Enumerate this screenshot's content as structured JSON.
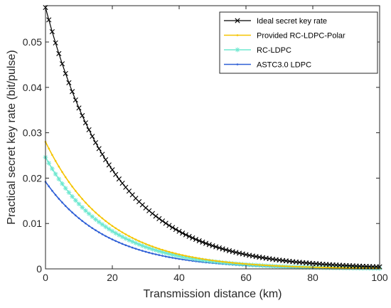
{
  "chart_data": {
    "type": "line",
    "title": "",
    "xlabel": "Transmission distance (km)",
    "ylabel": "Practical secret key rate (bit/pulse)",
    "xlim": [
      0,
      100
    ],
    "ylim": [
      0,
      0.058
    ],
    "x_ticks": [
      "0",
      "20",
      "40",
      "60",
      "80",
      "100"
    ],
    "y_ticks": [
      "0",
      "0.01",
      "0.02",
      "0.03",
      "0.04",
      "0.05"
    ],
    "grid": false,
    "legend_position": "top-right",
    "x": [
      0,
      1,
      2,
      3,
      4,
      5,
      6,
      7,
      8,
      9,
      10,
      11,
      12,
      13,
      14,
      15,
      16,
      17,
      18,
      19,
      20,
      21,
      22,
      23,
      24,
      25,
      26,
      27,
      28,
      29,
      30,
      31,
      32,
      33,
      34,
      35,
      36,
      37,
      38,
      39,
      40,
      41,
      42,
      43,
      44,
      45,
      46,
      47,
      48,
      49,
      50,
      51,
      52,
      53,
      54,
      55,
      56,
      57,
      58,
      59,
      60,
      61,
      62,
      63,
      64,
      65,
      66,
      67,
      68,
      69,
      70,
      71,
      72,
      73,
      74,
      75,
      76,
      77,
      78,
      79,
      80,
      81,
      82,
      83,
      84,
      85,
      86,
      87,
      88,
      89,
      90,
      91,
      92,
      93,
      94,
      95,
      96,
      97,
      98,
      99,
      100
    ],
    "series": [
      {
        "name": "Ideal secret key rate",
        "color": "#000000",
        "marker": "x",
        "values": [
          0.0576,
          0.05487,
          0.05227,
          0.0498,
          0.04744,
          0.04519,
          0.04305,
          0.04102,
          0.03907,
          0.03722,
          0.03546,
          0.03378,
          0.03218,
          0.03066,
          0.02921,
          0.02782,
          0.0265,
          0.02525,
          0.02405,
          0.02291,
          0.02183,
          0.0208,
          0.01981,
          0.01887,
          0.01798,
          0.01713,
          0.01632,
          0.01554,
          0.01481,
          0.01411,
          0.01344,
          0.0128,
          0.0122,
          0.01162,
          0.01107,
          0.01055,
          0.01005,
          0.00957,
          0.00912,
          0.00869,
          0.00828,
          0.00788,
          0.00751,
          0.00716,
          0.00682,
          0.00649,
          0.00619,
          0.0059,
          0.00562,
          0.00535,
          0.0051,
          0.00486,
          0.00463,
          0.00441,
          0.0042,
          0.004,
          0.00381,
          0.00363,
          0.00346,
          0.0033,
          0.00314,
          0.00299,
          0.00285,
          0.00272,
          0.00259,
          0.00247,
          0.00235,
          0.00224,
          0.00213,
          0.00203,
          0.00193,
          0.00184,
          0.00176,
          0.00167,
          0.00159,
          0.00152,
          0.00145,
          0.00138,
          0.00131,
          0.00125,
          0.00119,
          0.00114,
          0.00108,
          0.00103,
          0.00098,
          0.00094,
          0.00089,
          0.00085,
          0.00081,
          0.00077,
          0.00074,
          0.0007,
          0.00067,
          0.00064,
          0.00061,
          0.00058,
          0.00055,
          0.00052,
          0.0005,
          0.00048,
          0.00045
        ]
      },
      {
        "name": "Provided RC-LDPC-Polar",
        "color": "#f5c400",
        "marker": "dot",
        "values": [
          0.028,
          0.02652,
          0.02512,
          0.02379,
          0.02254,
          0.02135,
          0.02022,
          0.01915,
          0.01814,
          0.01718,
          0.01628,
          0.01542,
          0.0146,
          0.01383,
          0.0131,
          0.01241,
          0.01176,
          0.01114,
          0.01055,
          0.00999,
          0.00946,
          0.00896,
          0.00849,
          0.00804,
          0.00762,
          0.00722,
          0.00683,
          0.00647,
          0.00613,
          0.00581,
          0.0055,
          0.00521,
          0.00494,
          0.00468,
          0.00443,
          0.0042,
          0.00397,
          0.00376,
          0.00357,
          0.00338,
          0.0032,
          0.00303,
          0.00287,
          0.00272,
          0.00258,
          0.00244,
          0.00231,
          0.00219,
          0.00207,
          0.00196,
          0.00186,
          0.00176,
          0.00167,
          0.00158,
          0.0015,
          0.00142,
          0.00134,
          0.00127,
          0.00121,
          0.00114,
          0.00108,
          0.00103,
          0.00097,
          0.00092,
          0.00087,
          0.00083,
          0.00078,
          0.00074,
          0.0007,
          0.00067,
          0.00063,
          0.0006,
          0.00057,
          0.00054,
          0.00051,
          0.00048,
          0.00046,
          0.00043,
          0.00041,
          0.00039,
          0.00037,
          0.00035,
          0.00033,
          0.00031,
          0.0003,
          0.00028,
          0.00027,
          0.00025,
          0.00024,
          0.00023,
          0.00021,
          0.0002,
          0.00019,
          0.00018,
          0.00017,
          0.00016,
          0.00015,
          0.00015,
          0.00014,
          0.00013,
          0.00012
        ]
      },
      {
        "name": "RC-LDPC",
        "color": "#6ee8d0",
        "marker": "asterisk",
        "values": [
          0.0246,
          0.0233,
          0.02207,
          0.0209,
          0.0198,
          0.01876,
          0.01777,
          0.01683,
          0.01594,
          0.0151,
          0.0143,
          0.01355,
          0.01283,
          0.01215,
          0.01151,
          0.0109,
          0.01033,
          0.00978,
          0.00927,
          0.00878,
          0.00831,
          0.00787,
          0.00746,
          0.00707,
          0.00669,
          0.00634,
          0.00601,
          0.00569,
          0.00539,
          0.0051,
          0.00483,
          0.00458,
          0.00434,
          0.00411,
          0.00389,
          0.00369,
          0.00349,
          0.00331,
          0.00313,
          0.00297,
          0.00281,
          0.00266,
          0.00252,
          0.00239,
          0.00226,
          0.00214,
          0.00203,
          0.00192,
          0.00182,
          0.00173,
          0.00163,
          0.00155,
          0.00147,
          0.00139,
          0.00132,
          0.00125,
          0.00118,
          0.00112,
          0.00106,
          0.001,
          0.00095,
          0.0009,
          0.00085,
          0.00081,
          0.00077,
          0.00073,
          0.00069,
          0.00065,
          0.00062,
          0.00058,
          0.00055,
          0.00052,
          0.0005,
          0.00047,
          0.00045,
          0.00042,
          0.0004,
          0.00038,
          0.00036,
          0.00034,
          0.00032,
          0.00031,
          0.00029,
          0.00028,
          0.00026,
          0.00025,
          0.00023,
          0.00022,
          0.00021,
          0.0002,
          0.00019,
          0.00018,
          0.00017,
          0.00016,
          0.00015,
          0.00014,
          0.00014,
          0.00013,
          0.00012,
          0.00012,
          0.00011
        ]
      },
      {
        "name": "ASTC3.0 LDPC",
        "color": "#2e5fd6",
        "marker": "dot",
        "values": [
          0.0192,
          0.01819,
          0.01722,
          0.01631,
          0.01545,
          0.01464,
          0.01386,
          0.01313,
          0.01244,
          0.01178,
          0.01116,
          0.01057,
          0.01001,
          0.00948,
          0.00898,
          0.00851,
          0.00806,
          0.00763,
          0.00723,
          0.00685,
          0.00649,
          0.00615,
          0.00582,
          0.00551,
          0.00522,
          0.00495,
          0.00469,
          0.00444,
          0.00421,
          0.00398,
          0.00377,
          0.00357,
          0.00338,
          0.00321,
          0.00304,
          0.00288,
          0.00272,
          0.00258,
          0.00244,
          0.00232,
          0.00219,
          0.00208,
          0.00197,
          0.00186,
          0.00177,
          0.00167,
          0.00158,
          0.0015,
          0.00142,
          0.00135,
          0.00128,
          0.00121,
          0.00114,
          0.00108,
          0.00103,
          0.00097,
          0.00092,
          0.00087,
          0.00083,
          0.00078,
          0.00074,
          0.0007,
          0.00067,
          0.00063,
          0.0006,
          0.00057,
          0.00054,
          0.00051,
          0.00048,
          0.00046,
          0.00043,
          0.00041,
          0.00039,
          0.00037,
          0.00035,
          0.00033,
          0.00031,
          0.0003,
          0.00028,
          0.00027,
          0.00025,
          0.00024,
          0.00023,
          0.00022,
          0.0002,
          0.00019,
          0.00018,
          0.00017,
          0.00016,
          0.00016,
          0.00015,
          0.00014,
          0.00013,
          0.00013,
          0.00012,
          0.00011,
          0.00011,
          0.0001,
          0.0001,
          9e-05,
          9e-05
        ]
      }
    ]
  }
}
